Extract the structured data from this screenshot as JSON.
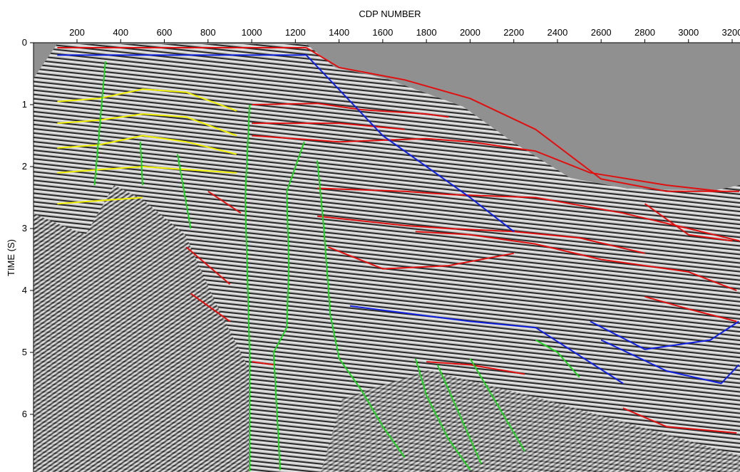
{
  "figure": {
    "x_axis_title": "CDP NUMBER",
    "y_axis_title": "TIME (S)",
    "x_ticks": [
      "200",
      "400",
      "600",
      "800",
      "1000",
      "1200",
      "1400",
      "1600",
      "1800",
      "2000",
      "2200",
      "2400",
      "2600",
      "2800",
      "3000",
      "3200"
    ],
    "y_ticks": [
      "0",
      "1",
      "2",
      "3",
      "4",
      "5",
      "6"
    ],
    "x_range": [
      0,
      3250
    ],
    "y_range": [
      0,
      7
    ],
    "colors": {
      "background_gray": "#909090",
      "horizon_red": "#e01010",
      "horizon_blue": "#1020e0",
      "horizon_yellow": "#f0f000",
      "fault_green": "#20d020",
      "boundary_orange": "#f07020"
    },
    "interpretation_lines": [
      {
        "color": "red",
        "points": [
          [
            110,
            0.08
          ],
          [
            1250,
            0.08
          ]
        ]
      },
      {
        "color": "red",
        "points": [
          [
            1000,
            1.0
          ],
          [
            1300,
            0.98
          ],
          [
            1500,
            1.08
          ],
          [
            1800,
            1.15
          ],
          [
            1900,
            1.2
          ]
        ]
      },
      {
        "color": "red",
        "points": [
          [
            1000,
            1.3
          ],
          [
            1400,
            1.3
          ],
          [
            1700,
            1.4
          ]
        ]
      },
      {
        "color": "red",
        "points": [
          [
            1250,
            0.08
          ],
          [
            1400,
            0.4
          ],
          [
            1700,
            0.6
          ],
          [
            2000,
            0.9
          ],
          [
            2300,
            1.4
          ],
          [
            2600,
            2.2
          ],
          [
            2900,
            2.4
          ],
          [
            3250,
            2.4
          ]
        ]
      },
      {
        "color": "red",
        "points": [
          [
            1000,
            1.5
          ],
          [
            1400,
            1.6
          ],
          [
            1800,
            1.55
          ],
          [
            2000,
            1.6
          ],
          [
            2300,
            1.75
          ],
          [
            2550,
            2.1
          ],
          [
            2900,
            2.3
          ],
          [
            3150,
            2.4
          ]
        ]
      },
      {
        "color": "red",
        "points": [
          [
            1300,
            2.35
          ],
          [
            1700,
            2.4
          ],
          [
            1900,
            2.45
          ],
          [
            2300,
            2.5
          ],
          [
            2700,
            2.75
          ],
          [
            3000,
            3.0
          ],
          [
            3250,
            3.2
          ]
        ]
      },
      {
        "color": "red",
        "points": [
          [
            1300,
            2.8
          ],
          [
            1700,
            2.95
          ],
          [
            1900,
            3.0
          ],
          [
            2200,
            3.05
          ],
          [
            2500,
            3.15
          ],
          [
            2800,
            3.4
          ]
        ]
      },
      {
        "color": "red",
        "points": [
          [
            1350,
            3.3
          ],
          [
            1600,
            3.65
          ],
          [
            1900,
            3.6
          ],
          [
            2200,
            3.4
          ]
        ]
      },
      {
        "color": "red",
        "points": [
          [
            1750,
            3.05
          ],
          [
            2000,
            3.1
          ],
          [
            2300,
            3.25
          ],
          [
            2600,
            3.5
          ],
          [
            3000,
            3.7
          ],
          [
            3220,
            4.0
          ]
        ]
      },
      {
        "color": "red",
        "points": [
          [
            2800,
            2.6
          ],
          [
            3000,
            3.1
          ],
          [
            3200,
            3.2
          ]
        ]
      },
      {
        "color": "red",
        "points": [
          [
            2800,
            4.1
          ],
          [
            3000,
            4.3
          ],
          [
            3220,
            4.5
          ]
        ]
      },
      {
        "color": "red",
        "points": [
          [
            1800,
            5.15
          ],
          [
            2000,
            5.2
          ],
          [
            2250,
            5.35
          ]
        ]
      },
      {
        "color": "red",
        "points": [
          [
            2700,
            5.9
          ],
          [
            2900,
            6.2
          ],
          [
            3220,
            6.3
          ]
        ]
      },
      {
        "color": "red",
        "points": [
          [
            800,
            2.4
          ],
          [
            950,
            2.75
          ]
        ]
      },
      {
        "color": "red",
        "points": [
          [
            700,
            3.3
          ],
          [
            900,
            3.9
          ]
        ]
      },
      {
        "color": "red",
        "points": [
          [
            720,
            4.05
          ],
          [
            900,
            4.5
          ]
        ]
      },
      {
        "color": "red",
        "points": [
          [
            1000,
            5.15
          ],
          [
            1100,
            5.2
          ]
        ]
      },
      {
        "color": "blue",
        "points": [
          [
            110,
            0.2
          ],
          [
            1250,
            0.2
          ],
          [
            1600,
            1.5
          ],
          [
            2000,
            2.5
          ],
          [
            2200,
            3.05
          ]
        ]
      },
      {
        "color": "blue",
        "points": [
          [
            1450,
            4.25
          ],
          [
            2000,
            4.5
          ],
          [
            2300,
            4.6
          ],
          [
            2700,
            5.5
          ]
        ]
      },
      {
        "color": "blue",
        "points": [
          [
            2550,
            4.5
          ],
          [
            2800,
            4.95
          ],
          [
            3100,
            4.8
          ],
          [
            3230,
            4.5
          ]
        ]
      },
      {
        "color": "blue",
        "points": [
          [
            2600,
            4.8
          ],
          [
            2900,
            5.3
          ],
          [
            3150,
            5.5
          ],
          [
            3230,
            5.2
          ]
        ]
      },
      {
        "color": "yellow",
        "points": [
          [
            110,
            0.95
          ],
          [
            300,
            0.9
          ],
          [
            500,
            0.75
          ],
          [
            700,
            0.8
          ],
          [
            930,
            1.1
          ]
        ]
      },
      {
        "color": "yellow",
        "points": [
          [
            110,
            1.3
          ],
          [
            300,
            1.25
          ],
          [
            500,
            1.15
          ],
          [
            700,
            1.2
          ],
          [
            930,
            1.5
          ]
        ]
      },
      {
        "color": "yellow",
        "points": [
          [
            110,
            1.7
          ],
          [
            300,
            1.65
          ],
          [
            500,
            1.5
          ],
          [
            700,
            1.6
          ],
          [
            930,
            1.8
          ]
        ]
      },
      {
        "color": "yellow",
        "points": [
          [
            110,
            2.1
          ],
          [
            300,
            2.05
          ],
          [
            500,
            2.0
          ],
          [
            700,
            2.05
          ],
          [
            930,
            2.1
          ]
        ]
      },
      {
        "color": "yellow",
        "points": [
          [
            110,
            2.6
          ],
          [
            300,
            2.55
          ],
          [
            500,
            2.5
          ]
        ]
      },
      {
        "color": "green",
        "points": [
          [
            330,
            0.3
          ],
          [
            300,
            1.5
          ],
          [
            280,
            2.3
          ]
        ]
      },
      {
        "color": "green",
        "points": [
          [
            490,
            1.6
          ],
          [
            500,
            2.3
          ]
        ]
      },
      {
        "color": "green",
        "points": [
          [
            660,
            1.8
          ],
          [
            720,
            3.0
          ]
        ]
      },
      {
        "color": "green",
        "points": [
          [
            990,
            1.0
          ],
          [
            970,
            2.5
          ],
          [
            990,
            5.0
          ],
          [
            990,
            7.0
          ]
        ]
      },
      {
        "color": "green",
        "points": [
          [
            1240,
            1.6
          ],
          [
            1160,
            2.4
          ],
          [
            1170,
            3.6
          ],
          [
            1160,
            4.6
          ],
          [
            1100,
            5.0
          ],
          [
            1130,
            6.9
          ]
        ]
      },
      {
        "color": "green",
        "points": [
          [
            1300,
            1.9
          ],
          [
            1330,
            3.0
          ],
          [
            1360,
            4.4
          ],
          [
            1400,
            5.1
          ],
          [
            1500,
            5.6
          ],
          [
            1600,
            6.2
          ],
          [
            1700,
            6.7
          ]
        ]
      },
      {
        "color": "green",
        "points": [
          [
            2300,
            4.8
          ],
          [
            2400,
            5.0
          ],
          [
            2500,
            5.4
          ]
        ]
      },
      {
        "color": "green",
        "points": [
          [
            1750,
            5.1
          ],
          [
            1800,
            5.7
          ],
          [
            1900,
            6.4
          ],
          [
            2000,
            6.9
          ]
        ]
      },
      {
        "color": "green",
        "points": [
          [
            1850,
            5.2
          ],
          [
            1950,
            6.0
          ],
          [
            2050,
            6.8
          ]
        ]
      },
      {
        "color": "green",
        "points": [
          [
            2000,
            5.1
          ],
          [
            2150,
            6.0
          ],
          [
            2250,
            6.6
          ]
        ]
      }
    ]
  }
}
